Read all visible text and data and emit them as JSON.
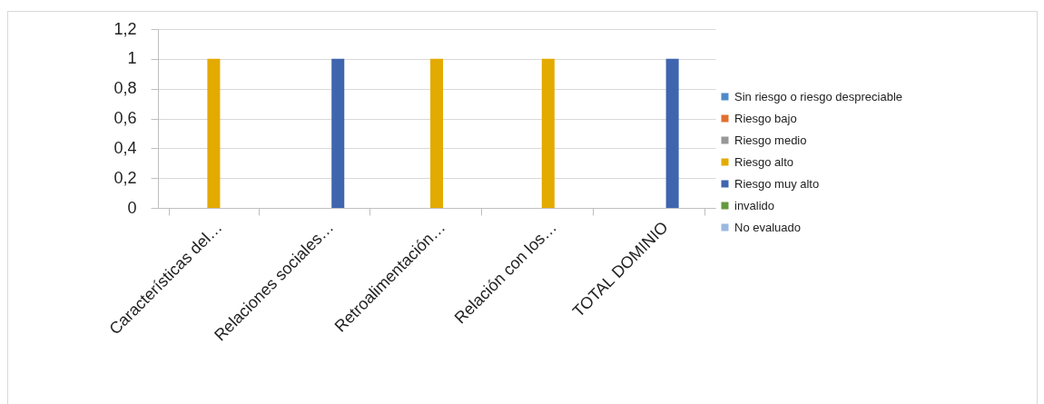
{
  "chart_data": {
    "type": "bar",
    "categories": [
      "Características del…",
      "Relaciones sociales…",
      "Retroalimentación…",
      "Relación con los…",
      "TOTAL DOMINIO"
    ],
    "series": [
      {
        "name": "Sin riesgo o riesgo despreciable",
        "color": "#4e8ac8",
        "values": [
          null,
          null,
          null,
          null,
          null
        ]
      },
      {
        "name": "Riesgo bajo",
        "color": "#e0702d",
        "values": [
          null,
          null,
          null,
          null,
          null
        ]
      },
      {
        "name": "Riesgo medio",
        "color": "#979797",
        "values": [
          null,
          null,
          null,
          null,
          null
        ]
      },
      {
        "name": "Riesgo alto",
        "color": "#e3aa00",
        "values": [
          1,
          null,
          1,
          1,
          null
        ]
      },
      {
        "name": "Riesgo muy alto",
        "color": "#3f65ae",
        "values": [
          null,
          1,
          null,
          null,
          1
        ]
      },
      {
        "name": "invalido",
        "color": "#65993f",
        "values": [
          null,
          null,
          null,
          null,
          null
        ]
      },
      {
        "name": "No evaluado",
        "color": "#9ab9e0",
        "values": [
          null,
          null,
          null,
          null,
          null
        ]
      }
    ],
    "ylim": [
      0,
      1.2
    ],
    "yticks": [
      0,
      {
        "value": 0.2,
        "label": "0,2"
      },
      {
        "value": 0.4,
        "label": "0,4"
      },
      {
        "value": 0.6,
        "label": "0,6"
      },
      {
        "value": 0.8,
        "label": "0,8"
      },
      1,
      {
        "value": 1.2,
        "label": "1,2"
      }
    ],
    "grid": "y",
    "legend": "right"
  }
}
